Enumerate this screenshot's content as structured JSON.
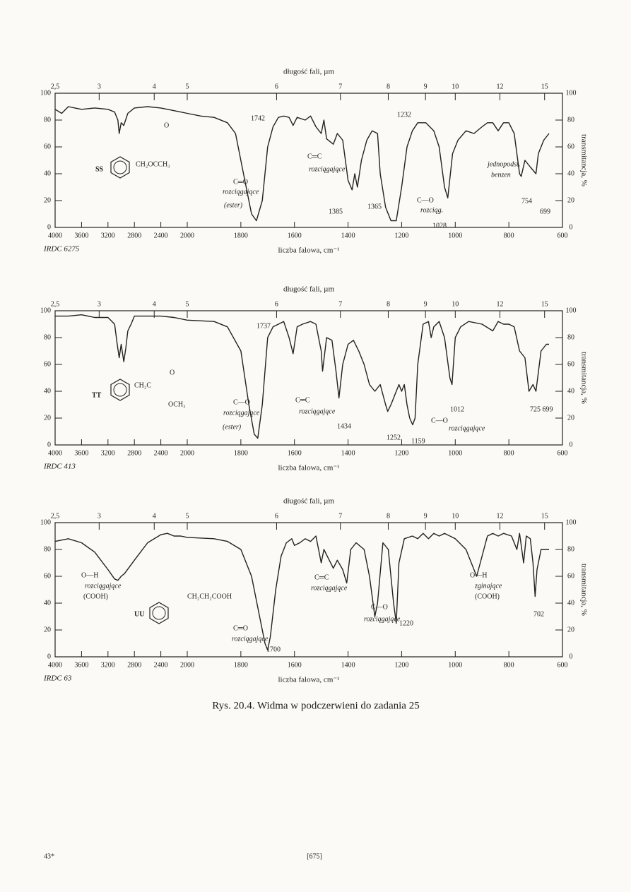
{
  "chart_data": [
    {
      "type": "line",
      "top_label": "długość fali, µm",
      "x_label": "liczba falowa, cm⁻¹",
      "y2_label": "transmitancja, %",
      "source": "IRDC 6275",
      "xlim": [
        4000,
        600
      ],
      "x_scale_break": 2000,
      "xticks": [
        4000,
        3600,
        3200,
        2800,
        2400,
        2000,
        1800,
        1600,
        1400,
        1200,
        1000,
        800,
        600
      ],
      "x2ticks": [
        {
          "value": 2.5,
          "label": "2,5"
        },
        3,
        4,
        5,
        6,
        7,
        8,
        9,
        10,
        12,
        15
      ],
      "ylim": [
        0,
        100
      ],
      "yticks": [
        0,
        20,
        40,
        60,
        80,
        100
      ],
      "color": "#222",
      "x": [
        4000,
        3900,
        3800,
        3700,
        3600,
        3400,
        3200,
        3100,
        3050,
        3030,
        3000,
        2960,
        2900,
        2800,
        2600,
        2400,
        2200,
        2100,
        2000,
        1950,
        1900,
        1850,
        1820,
        1790,
        1760,
        1742,
        1720,
        1700,
        1680,
        1660,
        1640,
        1620,
        1605,
        1590,
        1560,
        1540,
        1520,
        1500,
        1490,
        1480,
        1455,
        1440,
        1420,
        1400,
        1385,
        1375,
        1365,
        1350,
        1330,
        1310,
        1290,
        1280,
        1260,
        1240,
        1220,
        1200,
        1180,
        1160,
        1140,
        1110,
        1080,
        1060,
        1040,
        1028,
        1010,
        990,
        960,
        930,
        900,
        880,
        860,
        840,
        820,
        800,
        780,
        760,
        754,
        740,
        720,
        699,
        690,
        670,
        650
      ],
      "values": [
        88,
        85,
        90,
        89,
        88,
        89,
        88,
        86,
        80,
        70,
        78,
        76,
        85,
        89,
        90,
        89,
        87,
        86,
        85,
        83,
        82,
        78,
        70,
        40,
        10,
        5,
        20,
        60,
        75,
        82,
        83,
        82,
        76,
        82,
        80,
        83,
        75,
        70,
        80,
        66,
        62,
        70,
        65,
        35,
        28,
        40,
        30,
        50,
        65,
        72,
        70,
        40,
        15,
        5,
        5,
        30,
        60,
        72,
        78,
        78,
        72,
        60,
        30,
        22,
        55,
        65,
        72,
        70,
        75,
        78,
        78,
        72,
        78,
        78,
        70,
        40,
        38,
        50,
        45,
        40,
        55,
        65,
        70
      ],
      "annotations": [
        "1742",
        "C═O",
        "rozciągające",
        "(ester)",
        "C═C",
        "rozciągające",
        "1385",
        "1365",
        "1232",
        "C—O",
        "rozciąg.",
        "1028",
        "jednopodst.",
        "benzen",
        "754",
        "699",
        "SS",
        "CH₂OCCH₃",
        "O"
      ]
    },
    {
      "type": "line",
      "top_label": "długość fali, µm",
      "x_label": "liczba falowa, cm⁻¹",
      "y2_label": "transmitancja, %",
      "source": "IRDC 413",
      "xlim": [
        4000,
        600
      ],
      "x_scale_break": 2000,
      "xticks": [
        4000,
        3600,
        3200,
        2800,
        2400,
        2000,
        1800,
        1600,
        1400,
        1200,
        1000,
        800,
        600
      ],
      "x2ticks": [
        {
          "value": 2.5,
          "label": "2,5"
        },
        3,
        4,
        5,
        6,
        7,
        8,
        9,
        10,
        12,
        15
      ],
      "ylim": [
        0,
        100
      ],
      "yticks": [
        0,
        20,
        40,
        60,
        80,
        100
      ],
      "color": "#222",
      "x": [
        4000,
        3800,
        3600,
        3400,
        3200,
        3100,
        3060,
        3030,
        3000,
        2960,
        2930,
        2900,
        2850,
        2800,
        2400,
        2200,
        2000,
        1900,
        1850,
        1800,
        1770,
        1750,
        1737,
        1720,
        1700,
        1680,
        1660,
        1640,
        1620,
        1605,
        1590,
        1570,
        1540,
        1520,
        1500,
        1495,
        1480,
        1460,
        1445,
        1434,
        1420,
        1400,
        1380,
        1360,
        1340,
        1320,
        1300,
        1280,
        1260,
        1252,
        1240,
        1220,
        1210,
        1200,
        1190,
        1180,
        1170,
        1159,
        1150,
        1140,
        1120,
        1100,
        1090,
        1080,
        1060,
        1040,
        1020,
        1012,
        1000,
        980,
        950,
        900,
        860,
        840,
        820,
        800,
        780,
        760,
        740,
        725,
        710,
        699,
        680,
        660,
        650
      ],
      "values": [
        96,
        96,
        97,
        95,
        95,
        90,
        75,
        65,
        75,
        62,
        72,
        85,
        90,
        96,
        96,
        95,
        93,
        92,
        88,
        70,
        30,
        8,
        5,
        30,
        80,
        88,
        90,
        92,
        80,
        68,
        88,
        90,
        92,
        90,
        70,
        55,
        80,
        78,
        55,
        35,
        60,
        75,
        78,
        70,
        60,
        45,
        40,
        45,
        30,
        25,
        30,
        40,
        45,
        40,
        45,
        30,
        20,
        15,
        20,
        60,
        90,
        92,
        80,
        88,
        92,
        80,
        50,
        45,
        80,
        88,
        92,
        90,
        85,
        92,
        90,
        90,
        88,
        70,
        65,
        40,
        45,
        40,
        70,
        75,
        75
      ],
      "annotations": [
        "1737",
        "C—O",
        "rozciągające",
        "(ester)",
        "C═C",
        "rozciągające",
        "1434",
        "1252",
        "1159",
        "C—O",
        "rozciągające",
        "1012",
        "725 699",
        "TT",
        "CH₂C",
        "O",
        "OCH₃"
      ]
    },
    {
      "type": "line",
      "top_label": "długość fali, µm",
      "x_label": "liczba falowa, cm⁻¹",
      "y2_label": "transmitancja, %",
      "source": "IRDC 63",
      "xlim": [
        4000,
        600
      ],
      "x_scale_break": 2000,
      "xticks": [
        4000,
        3600,
        3200,
        2800,
        2400,
        2000,
        1800,
        1600,
        1400,
        1200,
        1000,
        800,
        600
      ],
      "x2ticks": [
        {
          "value": 2.5,
          "label": "2,5"
        },
        3,
        4,
        5,
        6,
        7,
        8,
        9,
        10,
        12,
        15
      ],
      "ylim": [
        0,
        100
      ],
      "yticks": [
        0,
        20,
        40,
        60,
        80,
        100
      ],
      "color": "#222",
      "x": [
        4000,
        3800,
        3600,
        3400,
        3200,
        3100,
        3050,
        3000,
        2950,
        2800,
        2600,
        2400,
        2300,
        2200,
        2100,
        2000,
        1900,
        1850,
        1800,
        1760,
        1730,
        1710,
        1700,
        1690,
        1670,
        1650,
        1630,
        1610,
        1600,
        1580,
        1560,
        1540,
        1520,
        1500,
        1490,
        1470,
        1455,
        1440,
        1420,
        1405,
        1390,
        1370,
        1340,
        1320,
        1300,
        1290,
        1270,
        1250,
        1230,
        1220,
        1210,
        1190,
        1160,
        1140,
        1120,
        1100,
        1080,
        1060,
        1040,
        1000,
        960,
        940,
        920,
        900,
        880,
        860,
        840,
        820,
        790,
        770,
        760,
        745,
        735,
        720,
        710,
        702,
        695,
        680,
        660,
        650
      ],
      "values": [
        86,
        88,
        85,
        78,
        65,
        58,
        57,
        60,
        62,
        72,
        85,
        91,
        92,
        90,
        90,
        89,
        88,
        86,
        80,
        60,
        30,
        10,
        5,
        15,
        50,
        75,
        85,
        88,
        83,
        85,
        88,
        86,
        90,
        70,
        80,
        72,
        66,
        72,
        65,
        55,
        80,
        85,
        80,
        60,
        30,
        40,
        85,
        80,
        40,
        25,
        70,
        88,
        90,
        88,
        92,
        88,
        92,
        90,
        92,
        88,
        80,
        70,
        60,
        75,
        90,
        92,
        90,
        92,
        90,
        80,
        92,
        70,
        90,
        88,
        70,
        45,
        65,
        80,
        80,
        80
      ],
      "annotations": [
        "O—H",
        "rozciągające",
        "(COOH)",
        "CH₂CH₂COOH",
        "UU",
        "C═O",
        "rozciągające",
        "1700",
        "C═C",
        "rozciągające",
        "C—O",
        "rozciągające",
        "1220",
        "O—H",
        "zginające",
        "(COOH)",
        "702"
      ]
    }
  ],
  "caption": "Rys. 20.4. Widma w podczerwieni do zadania 25",
  "footer": {
    "left": "43*",
    "center": "[675]"
  }
}
